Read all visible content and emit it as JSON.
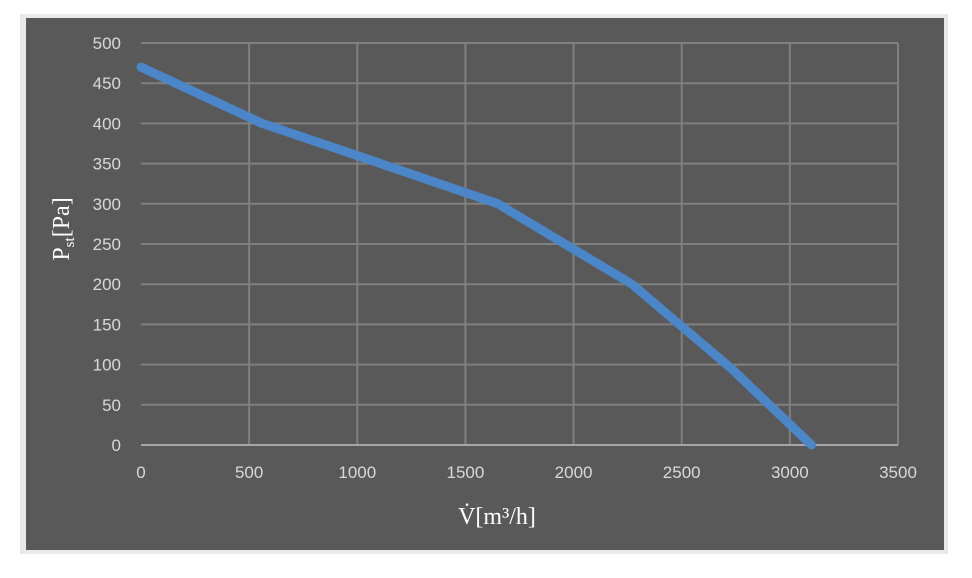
{
  "chart_data": {
    "type": "line",
    "x_ticks": [
      "0",
      "500",
      "1000",
      "1500",
      "2000",
      "2500",
      "3000",
      "3500"
    ],
    "y_ticks": [
      "0",
      "50",
      "100",
      "150",
      "200",
      "250",
      "300",
      "350",
      "400",
      "450",
      "500"
    ],
    "xlim": [
      0,
      3500
    ],
    "ylim": [
      0,
      500
    ],
    "ylabel_main": "P",
    "ylabel_sub": "st",
    "ylabel_unit": "[Pa]",
    "xlabel_symbol": "V̇",
    "xlabel_unit": "[m³/h]",
    "grid": true,
    "series": [
      {
        "x": [
          0,
          560,
          1000,
          1650,
          2270,
          2730,
          3100
        ],
        "y": [
          470,
          400,
          360,
          300,
          200,
          95,
          0
        ]
      }
    ],
    "colors": {
      "line": "#4a86c8",
      "background": "#595959",
      "grid": "#808080",
      "frame": "#e9e9e9"
    }
  }
}
